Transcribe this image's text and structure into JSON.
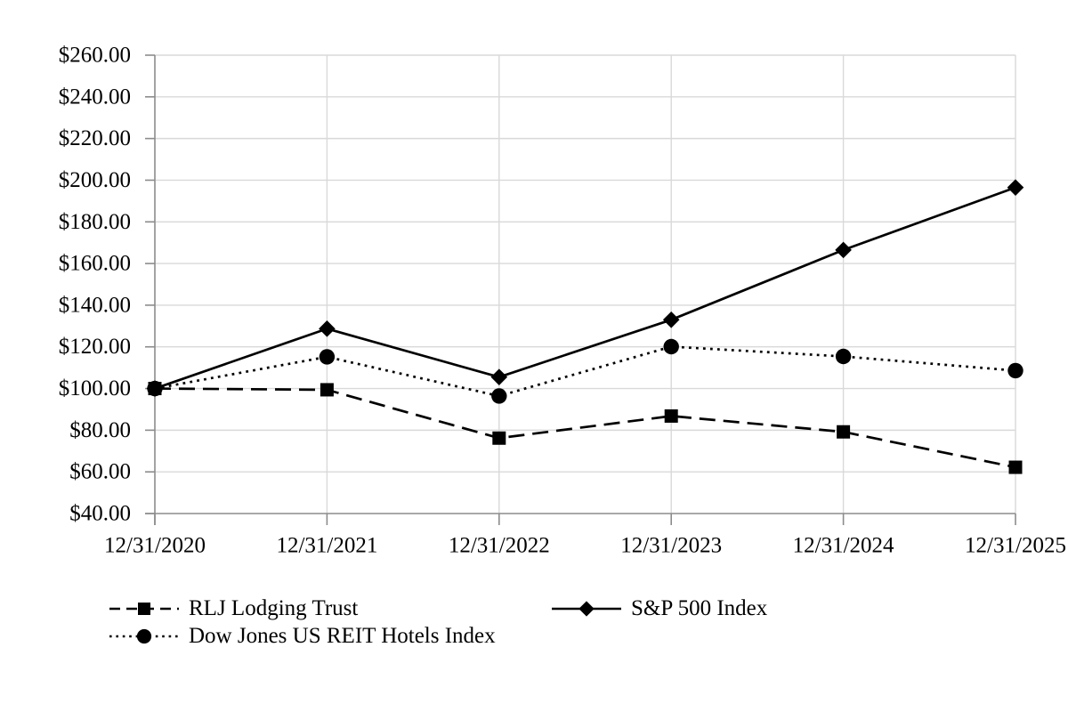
{
  "chart_data": {
    "type": "line",
    "categories": [
      "12/31/2020",
      "12/31/2021",
      "12/31/2022",
      "12/31/2023",
      "12/31/2024",
      "12/31/2025"
    ],
    "series": [
      {
        "name": "RLJ Lodging Trust",
        "values": [
          100.0,
          99.4,
          76.2,
          86.8,
          79.2,
          62.2
        ],
        "marker": "square",
        "line_style": "dashed",
        "color": "#000000"
      },
      {
        "name": "S&P 500 Index",
        "values": [
          100.0,
          128.7,
          105.5,
          133.0,
          166.5,
          196.5
        ],
        "marker": "diamond",
        "line_style": "solid",
        "color": "#000000"
      },
      {
        "name": "Dow Jones US REIT Hotels Index",
        "values": [
          100.0,
          115.2,
          96.4,
          120.1,
          115.4,
          108.6
        ],
        "marker": "circle",
        "line_style": "dotted",
        "color": "#000000"
      }
    ],
    "y_axis": {
      "min": 40,
      "max": 260,
      "step": 20,
      "tick_labels": [
        "$40.00",
        "$60.00",
        "$80.00",
        "$100.00",
        "$120.00",
        "$140.00",
        "$160.00",
        "$180.00",
        "$200.00",
        "$220.00",
        "$240.00",
        "$260.00"
      ]
    },
    "ylim": [
      40,
      260
    ],
    "grid": true,
    "legend_position": "bottom-left",
    "gridline_color": "#d9d9d9",
    "axis_color": "#8c8c8c",
    "series_color": "#000000",
    "background_color": "#ffffff"
  }
}
